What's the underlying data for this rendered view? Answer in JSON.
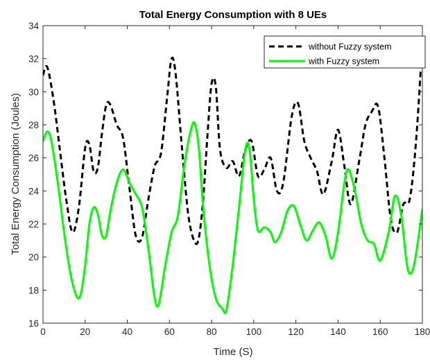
{
  "chart_data": {
    "type": "line",
    "title": "Total Energy Consumption with 8 UEs",
    "xlabel": "Time (S)",
    "ylabel": "Total Energy Consumption (Joules)",
    "xlim": [
      0,
      180
    ],
    "ylim": [
      16,
      34
    ],
    "xticks": [
      0,
      20,
      40,
      60,
      80,
      100,
      120,
      140,
      160,
      180
    ],
    "yticks": [
      16,
      18,
      20,
      22,
      24,
      26,
      28,
      30,
      32,
      34
    ],
    "grid": false,
    "legend_position": "top-right",
    "series": [
      {
        "name": "without Fuzzy system",
        "color": "#000000",
        "style": "dashed",
        "x": [
          0,
          2,
          5,
          8,
          11,
          14,
          17,
          20,
          22,
          24,
          26,
          28,
          30,
          32,
          35,
          38,
          41,
          44,
          47,
          50,
          53,
          56,
          59,
          61,
          63,
          66,
          69,
          72,
          74,
          76,
          78,
          80,
          82,
          84,
          87,
          90,
          93,
          96,
          99,
          102,
          105,
          108,
          111,
          114,
          118,
          121,
          124,
          127,
          130,
          133,
          137,
          140,
          143,
          146,
          150,
          153,
          156,
          159,
          162,
          165,
          168,
          171,
          174,
          177,
          180
        ],
        "values": [
          31.0,
          31.5,
          29.5,
          26.5,
          23.5,
          21.5,
          23.0,
          26.6,
          26.8,
          25.2,
          25.4,
          27.5,
          29.2,
          29.2,
          28.0,
          27.2,
          24.2,
          21.3,
          21.2,
          23.5,
          25.5,
          26.3,
          29.8,
          32.0,
          31.0,
          26.5,
          22.5,
          20.9,
          21.2,
          23.5,
          27.3,
          30.5,
          30.3,
          26.5,
          25.4,
          25.8,
          24.9,
          26.5,
          27.0,
          24.9,
          25.3,
          26.0,
          24.0,
          24.5,
          28.5,
          29.3,
          27.0,
          26.0,
          25.2,
          23.8,
          25.8,
          27.7,
          25.5,
          23.2,
          25.8,
          28.0,
          28.8,
          29.1,
          26.0,
          22.3,
          21.5,
          23.2,
          23.5,
          27.0,
          33.0
        ]
      },
      {
        "name": "with Fuzzy system",
        "color": "#00ff00",
        "style": "solid",
        "x": [
          0,
          2,
          4,
          7,
          10,
          13,
          16,
          18,
          20,
          22,
          24,
          26,
          28,
          30,
          32,
          35,
          38,
          41,
          44,
          47,
          50,
          53,
          55,
          58,
          61,
          64,
          67,
          70,
          72,
          74,
          76,
          79,
          82,
          85,
          87,
          90,
          93,
          96,
          98,
          100,
          102,
          105,
          108,
          110,
          113,
          116,
          119,
          122,
          125,
          128,
          131,
          134,
          137,
          140,
          143,
          145,
          148,
          151,
          154,
          157,
          160,
          164,
          167,
          170,
          173,
          176,
          180
        ],
        "values": [
          27.0,
          27.6,
          27.0,
          24.5,
          21.5,
          19.0,
          17.6,
          17.8,
          19.5,
          22.0,
          23.0,
          22.6,
          21.3,
          21.3,
          22.8,
          24.5,
          25.3,
          24.5,
          23.8,
          23.0,
          20.5,
          17.5,
          17.2,
          19.5,
          21.5,
          22.5,
          25.5,
          27.6,
          28.1,
          26.5,
          23.0,
          19.5,
          17.5,
          16.9,
          16.8,
          19.5,
          23.0,
          26.5,
          26.5,
          23.5,
          21.6,
          21.8,
          21.5,
          20.9,
          21.5,
          22.8,
          23.1,
          22.0,
          21.0,
          21.6,
          22.1,
          21.3,
          19.9,
          21.5,
          24.5,
          25.3,
          24.0,
          22.0,
          21.0,
          20.8,
          19.8,
          21.5,
          23.7,
          22.5,
          19.3,
          19.5,
          22.9
        ]
      }
    ]
  }
}
